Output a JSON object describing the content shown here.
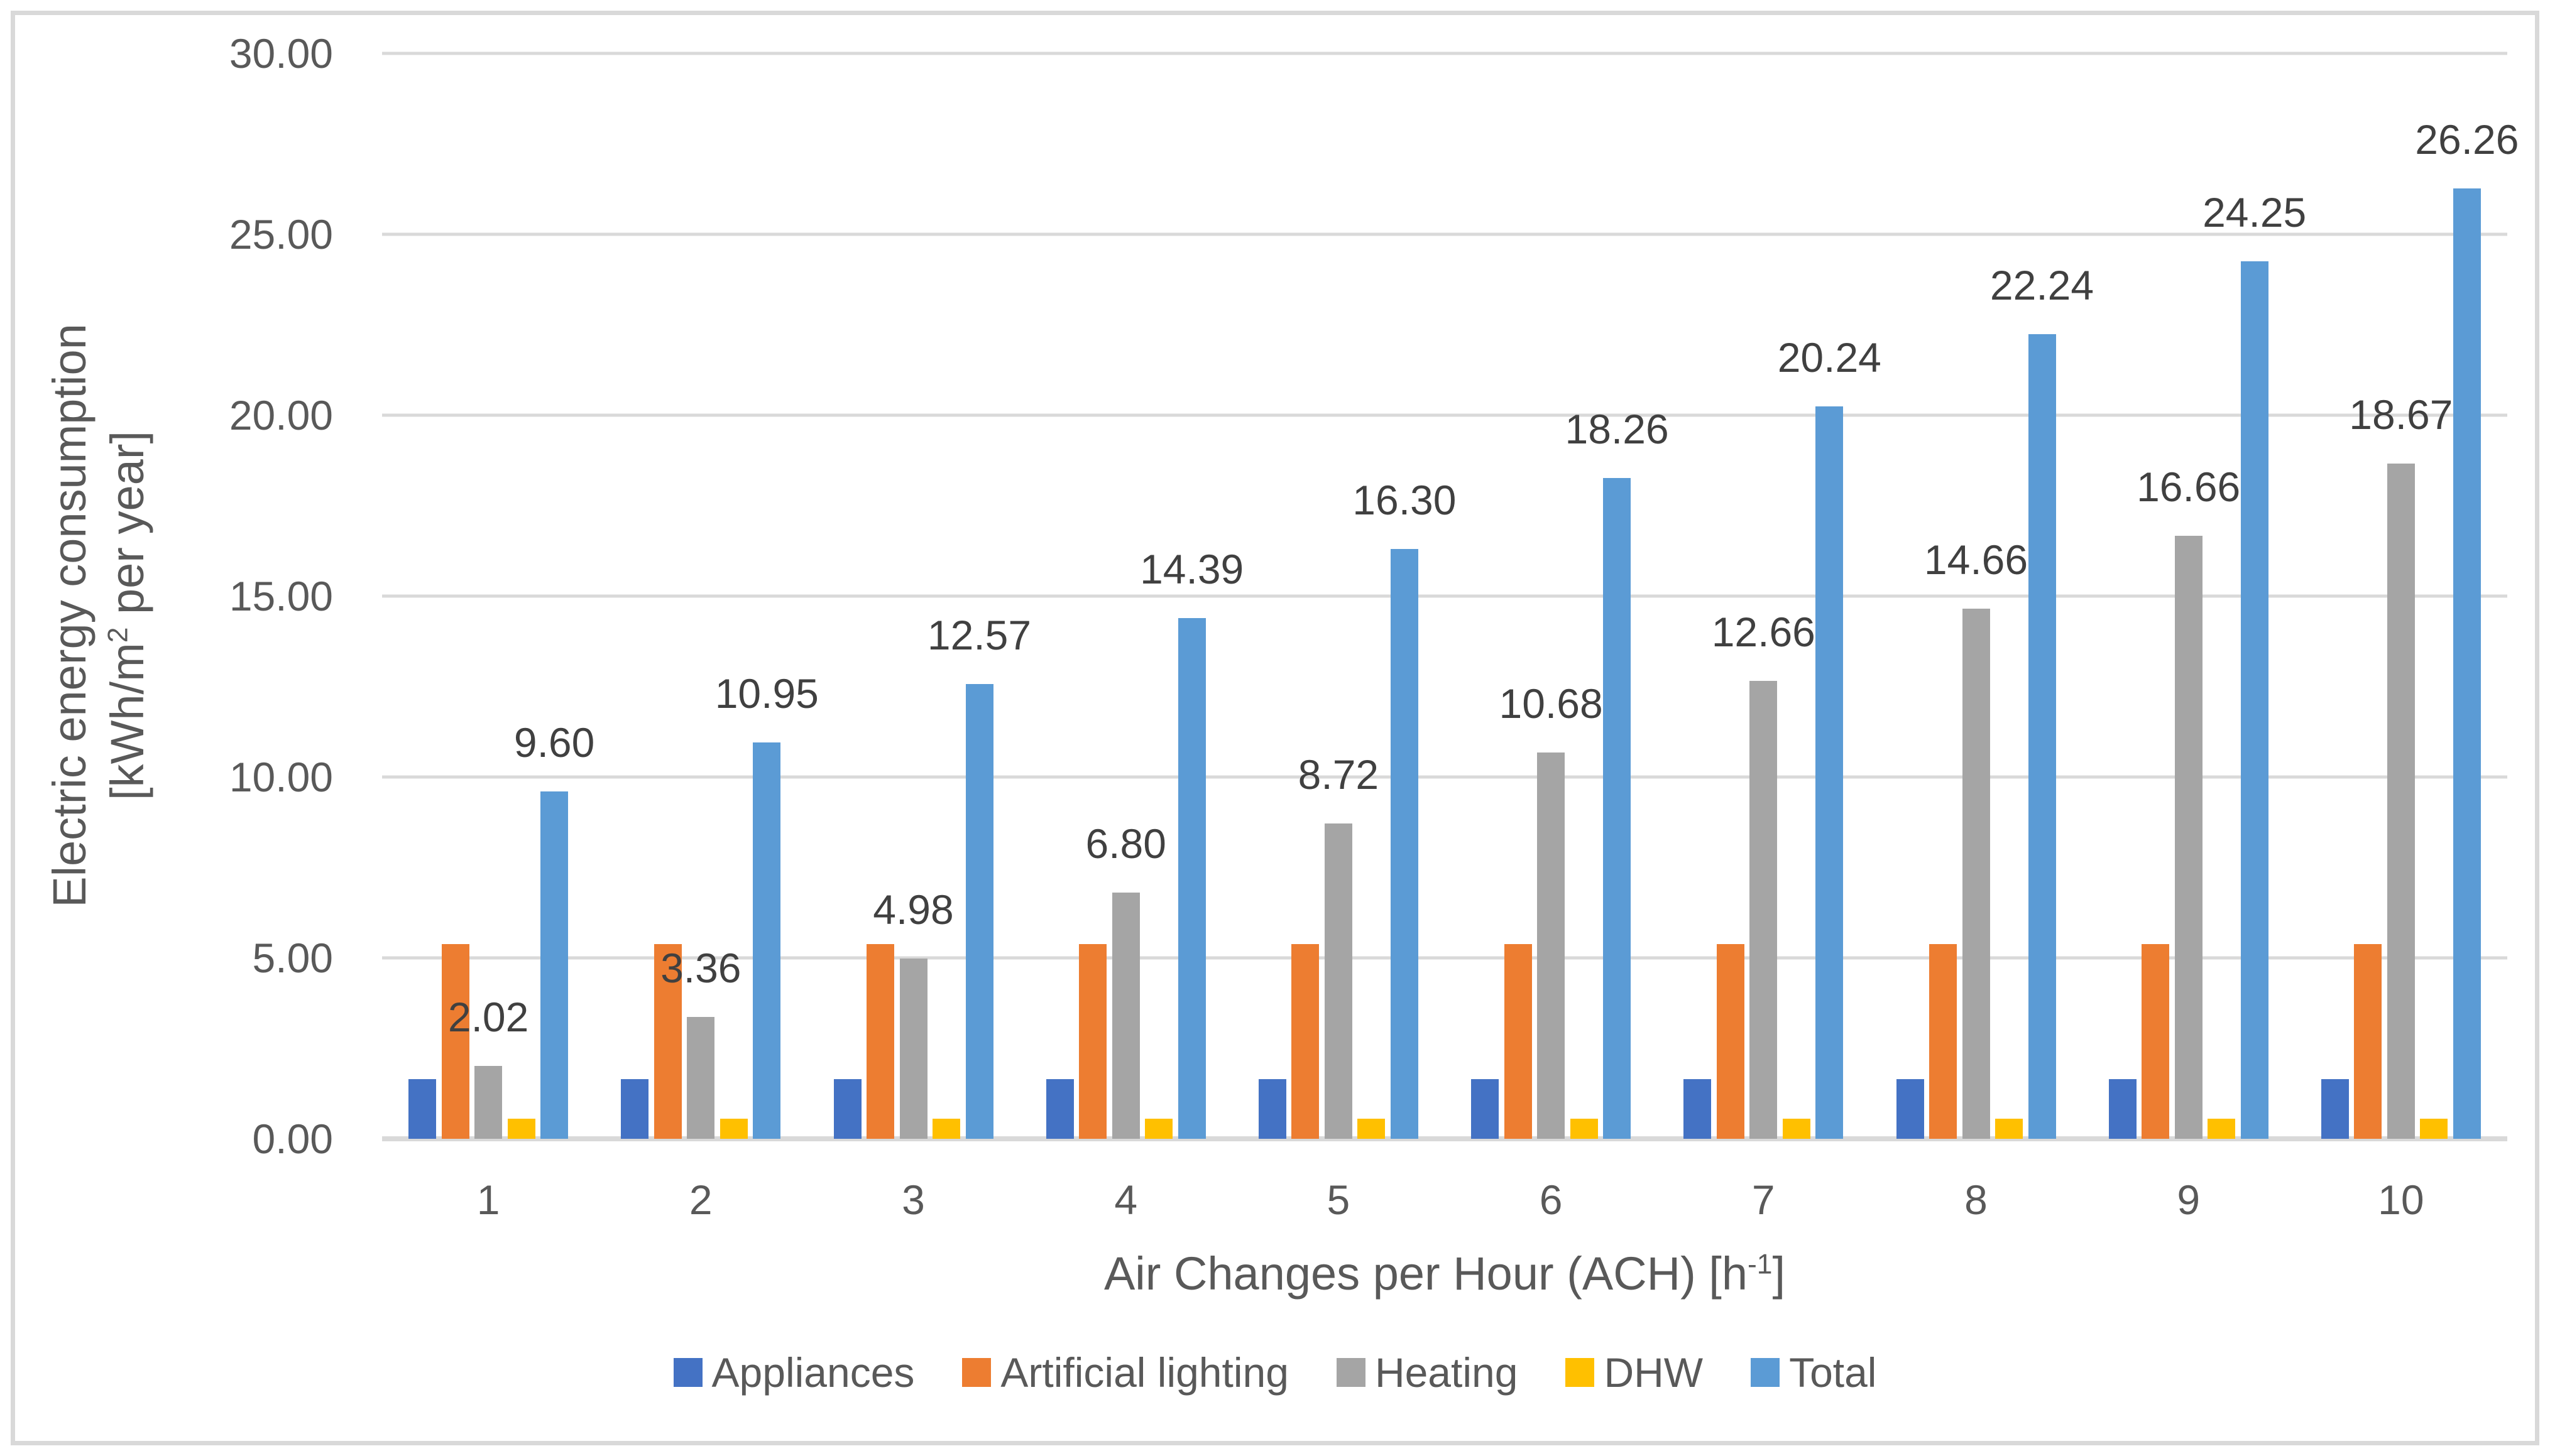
{
  "chart_data": {
    "type": "bar",
    "title": "",
    "categories": [
      "1",
      "2",
      "3",
      "4",
      "5",
      "6",
      "7",
      "8",
      "9",
      "10"
    ],
    "series": [
      {
        "name": "Appliances",
        "color": "#4472C4",
        "values": [
          1.65,
          1.65,
          1.65,
          1.65,
          1.65,
          1.65,
          1.65,
          1.65,
          1.65,
          1.65
        ],
        "show_labels": false,
        "labels": []
      },
      {
        "name": "Artificial lighting",
        "color": "#ED7D31",
        "values": [
          5.38,
          5.38,
          5.38,
          5.38,
          5.38,
          5.38,
          5.38,
          5.38,
          5.38,
          5.38
        ],
        "show_labels": false,
        "labels": []
      },
      {
        "name": "Heating",
        "color": "#A5A5A5",
        "values": [
          2.02,
          3.36,
          4.98,
          6.8,
          8.72,
          10.68,
          12.66,
          14.66,
          16.66,
          18.67
        ],
        "show_labels": true,
        "labels": [
          "2.02",
          "3.36",
          "4.98",
          "6.80",
          "8.72",
          "10.68",
          "12.66",
          "14.66",
          "16.66",
          "18.67"
        ]
      },
      {
        "name": "DHW",
        "color": "#FFC000",
        "values": [
          0.55,
          0.55,
          0.55,
          0.55,
          0.55,
          0.55,
          0.55,
          0.55,
          0.55,
          0.55
        ],
        "show_labels": false,
        "labels": []
      },
      {
        "name": "Total",
        "color": "#5B9BD5",
        "values": [
          9.6,
          10.95,
          12.57,
          14.39,
          16.3,
          18.26,
          20.24,
          22.24,
          24.25,
          26.26
        ],
        "show_labels": true,
        "labels": [
          "9.60",
          "10.95",
          "12.57",
          "14.39",
          "16.30",
          "18.26",
          "20.24",
          "22.24",
          "24.25",
          "26.26"
        ]
      }
    ],
    "xlabel": "Air Changes per Hour (ACH) [h⁻¹]",
    "ylabel": "Electric energy consumption [kWh/m² per year]",
    "ylim": [
      0,
      30
    ],
    "ytick_step": 5,
    "yticks": [
      "0.00",
      "5.00",
      "10.00",
      "15.00",
      "20.00",
      "25.00",
      "30.00"
    ],
    "grid": true,
    "legend_position": "bottom"
  },
  "axis_titles": {
    "x_pre": "Air Changes per Hour (ACH) [h",
    "x_sup": "-1",
    "x_post": "]",
    "y_line1": "Electric energy consumption",
    "y2_pre": "[kWh/m",
    "y2_sup": "2",
    "y2_post": " per year]"
  },
  "styles": {
    "background": "#FFFFFF",
    "frame_color": "#D9D9D9",
    "grid_color": "#D9D9D9",
    "axis_line_color": "#D9D9D9",
    "tick_text_color": "#595959",
    "axis_title_color": "#595959",
    "data_label_color": "#404040",
    "legend_text_color": "#595959"
  }
}
